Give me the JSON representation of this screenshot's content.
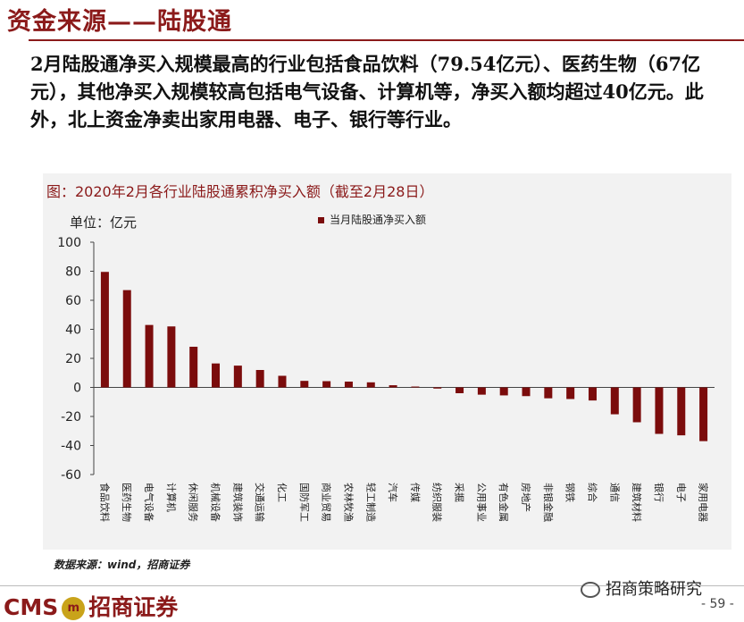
{
  "slide": {
    "title": "资金来源——陆股通",
    "summary": "2月陆股通净买入规模最高的行业包括食品饮料（79.54亿元）、医药生物（67亿元），其他净买入规模较高包括电气设备、计算机等，净买入额均超过40亿元。此外，北上资金净卖出家用电器、电子、银行等行业。"
  },
  "chart": {
    "title": "图：2020年2月各行业陆股通累积净买入额（截至2月28日）",
    "unit": "单位：亿元",
    "legend": "当月陆股通净买入额",
    "source": "数据来源：wind，招商证券"
  },
  "chart_data": {
    "type": "bar",
    "categories": [
      "食品饮料",
      "医药生物",
      "电气设备",
      "计算机",
      "休闲服务",
      "机械设备",
      "建筑装饰",
      "交通运输",
      "化工",
      "国防军工",
      "商业贸易",
      "农林牧渔",
      "轻工制造",
      "汽车",
      "传媒",
      "纺织服装",
      "采掘",
      "公用事业",
      "有色金属",
      "房地产",
      "非银金融",
      "钢铁",
      "综合",
      "通信",
      "建筑材料",
      "银行",
      "电子",
      "家用电器"
    ],
    "series": [
      {
        "name": "当月陆股通净买入额",
        "values": [
          79.54,
          67,
          43,
          42,
          28,
          16.5,
          15,
          12,
          8,
          4.5,
          4.3,
          4,
          3.5,
          1.5,
          0.6,
          -0.8,
          -4,
          -5,
          -5.5,
          -6,
          -7.5,
          -8,
          -9,
          -18.5,
          -24,
          -32,
          -33,
          -37
        ]
      }
    ],
    "yticks": [
      100,
      80,
      60,
      40,
      20,
      0,
      -20,
      -40,
      -60
    ],
    "ylim": [
      -60,
      100
    ],
    "grid": false,
    "legend_position": "top",
    "bar_color": "#7b0c0c"
  },
  "footer": {
    "logo_text": "CMS",
    "logo_mark": "m",
    "logo_name": "招商证券",
    "wechat": "招商策略研究",
    "page": "- 59 -"
  }
}
